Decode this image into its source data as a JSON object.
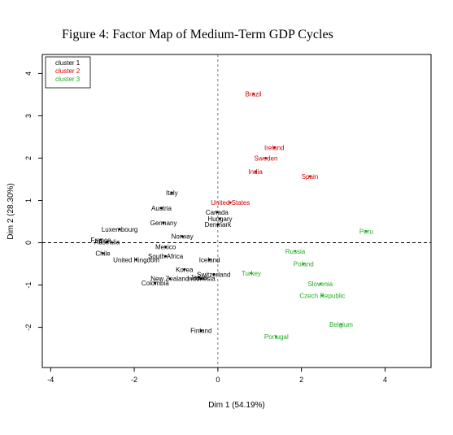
{
  "figure_title": "Figure 4: Factor Map of Medium-Term GDP Cycles",
  "colors": {
    "cluster 1": "#000000",
    "cluster 2": "#cc0000",
    "cluster 3": "#22aa22"
  },
  "chart_data": {
    "type": "scatter",
    "title": "Figure 4: Factor Map of Medium-Term GDP Cycles",
    "xlabel": "Dim 1 (54.19%)",
    "ylabel": "Dim 2 (28.30%)",
    "xlim": [
      -4.2,
      5.1
    ],
    "ylim": [
      -2.95,
      4.45
    ],
    "xticks": [
      -4,
      -2,
      0,
      2,
      4
    ],
    "yticks": [
      -2,
      -1,
      0,
      1,
      2,
      3,
      4
    ],
    "reference_lines": {
      "x": 0,
      "y": 0
    },
    "grid": false,
    "legend_position": "top-left",
    "legend": [
      "cluster 1",
      "cluster 2",
      "cluster 3"
    ],
    "series": [
      {
        "name": "cluster 1",
        "points": [
          {
            "label": "Italy",
            "x": -1.1,
            "y": 1.18
          },
          {
            "label": "Austria",
            "x": -1.35,
            "y": 0.82
          },
          {
            "label": "Germany",
            "x": -1.3,
            "y": 0.47
          },
          {
            "label": "Canada",
            "x": -0.02,
            "y": 0.72
          },
          {
            "label": "Hungary",
            "x": 0.05,
            "y": 0.57
          },
          {
            "label": "Denmark",
            "x": 0.0,
            "y": 0.43
          },
          {
            "label": "Luxembourg",
            "x": -2.35,
            "y": 0.32
          },
          {
            "label": "Norway",
            "x": -0.85,
            "y": 0.15
          },
          {
            "label": "France",
            "x": -2.8,
            "y": 0.07
          },
          {
            "label": "Australia",
            "x": -2.65,
            "y": 0.02
          },
          {
            "label": "Mexico",
            "x": -1.25,
            "y": -0.1
          },
          {
            "label": "Chile",
            "x": -2.75,
            "y": -0.25
          },
          {
            "label": "United Kingdom",
            "x": -1.95,
            "y": -0.4
          },
          {
            "label": "South Africa",
            "x": -1.25,
            "y": -0.32
          },
          {
            "label": "Iceland",
            "x": -0.2,
            "y": -0.4
          },
          {
            "label": "Korea",
            "x": -0.8,
            "y": -0.63
          },
          {
            "label": "Switzerland",
            "x": -0.1,
            "y": -0.75
          },
          {
            "label": "New Zealand",
            "x": -1.15,
            "y": -0.85
          },
          {
            "label": "Japan",
            "x": -0.45,
            "y": -0.82
          },
          {
            "label": "Indonesia",
            "x": -0.4,
            "y": -0.85
          },
          {
            "label": "Colombia",
            "x": -1.5,
            "y": -0.95
          },
          {
            "label": "Finland",
            "x": -0.4,
            "y": -2.08
          }
        ]
      },
      {
        "name": "cluster 2",
        "points": [
          {
            "label": "Brazil",
            "x": 0.85,
            "y": 3.52
          },
          {
            "label": "Ireland",
            "x": 1.35,
            "y": 2.25
          },
          {
            "label": "Sweden",
            "x": 1.15,
            "y": 2.0
          },
          {
            "label": "India",
            "x": 0.9,
            "y": 1.68
          },
          {
            "label": "Spain",
            "x": 2.2,
            "y": 1.57
          },
          {
            "label": "United States",
            "x": 0.3,
            "y": 0.95
          }
        ]
      },
      {
        "name": "cluster 3",
        "points": [
          {
            "label": "Peru",
            "x": 3.55,
            "y": 0.27
          },
          {
            "label": "Russia",
            "x": 1.85,
            "y": -0.2
          },
          {
            "label": "Poland",
            "x": 2.05,
            "y": -0.5
          },
          {
            "label": "Turkey",
            "x": 0.8,
            "y": -0.72
          },
          {
            "label": "Slovenia",
            "x": 2.45,
            "y": -0.97
          },
          {
            "label": "Czech Republic",
            "x": 2.5,
            "y": -1.25
          },
          {
            "label": "Belgium",
            "x": 2.95,
            "y": -1.93
          },
          {
            "label": "Portugal",
            "x": 1.4,
            "y": -2.22
          }
        ]
      }
    ]
  }
}
